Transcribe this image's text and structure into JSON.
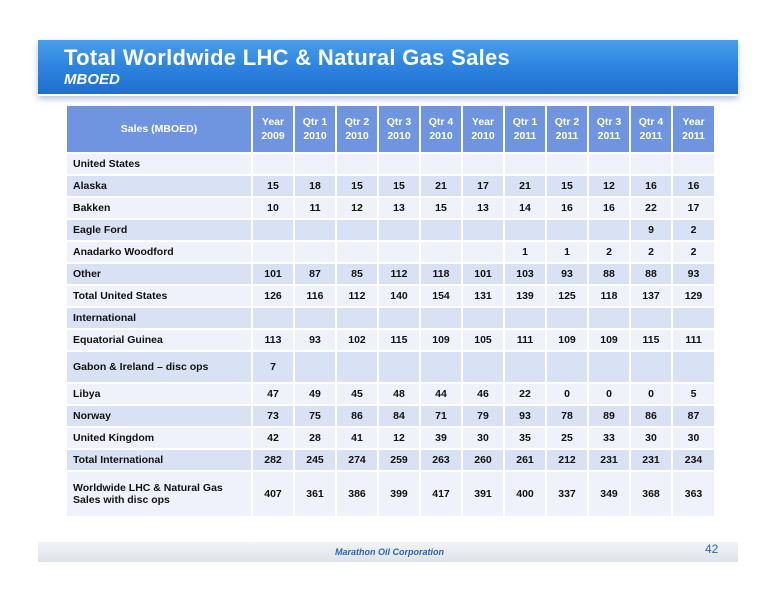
{
  "slide": {
    "title": "Total Worldwide LHC & Natural Gas Sales",
    "subtitle": "MBOED",
    "footer": "Marathon Oil Corporation",
    "page_number": "42"
  },
  "table": {
    "header": [
      [
        "Sales (MBOED)",
        ""
      ],
      [
        "Year",
        "2009"
      ],
      [
        "Qtr 1",
        "2010"
      ],
      [
        "Qtr 2",
        "2010"
      ],
      [
        "Qtr 3",
        "2010"
      ],
      [
        "Qtr 4",
        "2010"
      ],
      [
        "Year",
        "2010"
      ],
      [
        "Qtr 1",
        "2011"
      ],
      [
        "Qtr 2",
        "2011"
      ],
      [
        "Qtr 3",
        "2011"
      ],
      [
        "Qtr 4",
        "2011"
      ],
      [
        "Year",
        "2011"
      ]
    ],
    "rows": [
      {
        "label": "United States",
        "values": [
          "",
          "",
          "",
          "",
          "",
          "",
          "",
          "",
          "",
          "",
          ""
        ],
        "height": "normal"
      },
      {
        "label": "Alaska",
        "values": [
          "15",
          "18",
          "15",
          "15",
          "21",
          "17",
          "21",
          "15",
          "12",
          "16",
          "16"
        ],
        "height": "normal"
      },
      {
        "label": "Bakken",
        "values": [
          "10",
          "11",
          "12",
          "13",
          "15",
          "13",
          "14",
          "16",
          "16",
          "22",
          "17"
        ],
        "height": "normal"
      },
      {
        "label": "Eagle Ford",
        "values": [
          "",
          "",
          "",
          "",
          "",
          "",
          "",
          "",
          "",
          "9",
          "2"
        ],
        "height": "normal"
      },
      {
        "label": "Anadarko Woodford",
        "values": [
          "",
          "",
          "",
          "",
          "",
          "",
          "1",
          "1",
          "2",
          "2",
          "2"
        ],
        "height": "normal"
      },
      {
        "label": "Other",
        "values": [
          "101",
          "87",
          "85",
          "112",
          "118",
          "101",
          "103",
          "93",
          "88",
          "88",
          "93"
        ],
        "height": "normal"
      },
      {
        "label": "Total United States",
        "values": [
          "126",
          "116",
          "112",
          "140",
          "154",
          "131",
          "139",
          "125",
          "118",
          "137",
          "129"
        ],
        "height": "normal"
      },
      {
        "label": "International",
        "values": [
          "",
          "",
          "",
          "",
          "",
          "",
          "",
          "",
          "",
          "",
          ""
        ],
        "height": "normal"
      },
      {
        "label": "Equatorial Guinea",
        "values": [
          "113",
          "93",
          "102",
          "115",
          "109",
          "105",
          "111",
          "109",
          "109",
          "115",
          "111"
        ],
        "height": "normal"
      },
      {
        "label": "Gabon & Ireland – disc ops",
        "values": [
          "7",
          "",
          "",
          "",
          "",
          "",
          "",
          "",
          "",
          "",
          ""
        ],
        "height": "tall"
      },
      {
        "label": "Libya",
        "values": [
          "47",
          "49",
          "45",
          "48",
          "44",
          "46",
          "22",
          "0",
          "0",
          "0",
          "5"
        ],
        "height": "normal"
      },
      {
        "label": "Norway",
        "values": [
          "73",
          "75",
          "86",
          "84",
          "71",
          "79",
          "93",
          "78",
          "89",
          "86",
          "87"
        ],
        "height": "normal"
      },
      {
        "label": "United Kingdom",
        "values": [
          "42",
          "28",
          "41",
          "12",
          "39",
          "30",
          "35",
          "25",
          "33",
          "30",
          "30"
        ],
        "height": "normal"
      },
      {
        "label": "Total International",
        "values": [
          "282",
          "245",
          "274",
          "259",
          "263",
          "260",
          "261",
          "212",
          "231",
          "231",
          "234"
        ],
        "height": "normal"
      },
      {
        "label": "Worldwide LHC & Natural Gas Sales with disc ops",
        "values": [
          "407",
          "361",
          "386",
          "399",
          "417",
          "391",
          "400",
          "337",
          "349",
          "368",
          "363"
        ],
        "height": "taller"
      }
    ]
  },
  "colors": {
    "banner": "#2f86e0",
    "header_fill": "#6f95e0",
    "row_light": "#eff2fb",
    "row_dark": "#d9e1f4",
    "footer_text": "#2a64b8"
  }
}
